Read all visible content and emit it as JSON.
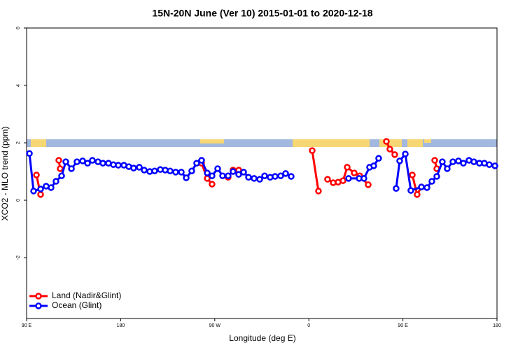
{
  "chart_data": {
    "type": "line",
    "title": "15N-20N June (Ver 10)   2015-01-01 to 2020-12-18",
    "x_label": "Longitude (deg E)",
    "y_label": "XCO2 - MLO trend (ppm)",
    "xlim": [
      90,
      540
    ],
    "xticks": [
      {
        "value": 90,
        "label": "90 E"
      },
      {
        "value": 180,
        "label": "180"
      },
      {
        "value": 270,
        "label": "90 W"
      },
      {
        "value": 360,
        "label": "0"
      },
      {
        "value": 450,
        "label": "90 E"
      },
      {
        "value": 540,
        "label": "180"
      }
    ],
    "ylim": [
      -4.12,
      6
    ],
    "yticks": [
      -2,
      0,
      2,
      4,
      6
    ],
    "legend": "bottomleft",
    "series": [
      {
        "name": "Land (Nadir&Glint)",
        "color": "#ff0000",
        "x": [
          99.4,
          103.4,
          null,
          120.8,
          122.1,
          null,
          257.4,
          262.8,
          267.4,
          null,
          282.8,
          287.5,
          292.9,
          null,
          363.2,
          369.2,
          null,
          377.9,
          383.3,
          388.0,
          392.7,
          396.7,
          403.4,
          408.7,
          416.8,
          null,
          434.2,
          437.5,
          442.2,
          null,
          459.0,
          463.6,
          467.7,
          null,
          480.4,
          482.4
        ],
        "values": [
          0.88,
          0.2,
          null,
          1.39,
          1.1,
          null,
          1.29,
          0.76,
          0.56,
          null,
          0.8,
          1.05,
          1.05,
          null,
          1.73,
          0.32,
          null,
          0.73,
          0.61,
          0.63,
          0.68,
          1.15,
          0.95,
          0.85,
          0.54,
          null,
          2.05,
          1.78,
          1.59,
          null,
          0.88,
          0.2,
          0.46,
          null,
          1.39,
          1.1
        ]
      },
      {
        "name": "Ocean (Glint)",
        "color": "#0000ff",
        "x": [
          92.7,
          96.7,
          103.4,
          108.7,
          113.4,
          118.1,
          123.5,
          127.5,
          132.9,
          138.2,
          143.6,
          148.3,
          152.9,
          158.3,
          163.0,
          168.3,
          173.0,
          177.7,
          183.1,
          187.8,
          192.4,
          197.8,
          202.5,
          207.8,
          212.5,
          217.9,
          222.6,
          227.3,
          232.6,
          238.0,
          242.7,
          248.0,
          252.7,
          257.4,
          262.8,
          267.4,
          272.8,
          277.5,
          282.8,
          287.5,
          292.9,
          297.6,
          302.3,
          307.6,
          313.0,
          317.7,
          323.0,
          327.7,
          333.1,
          337.8,
          343.1,
          null,
          398.0,
          408.1,
          412.7,
          418.1,
          422.1,
          426.8,
          null,
          443.5,
          446.9,
          452.3,
          457.6,
          467.7,
          473.0,
          477.7,
          482.4,
          487.7,
          492.4,
          497.8,
          503.1,
          507.8,
          513.2,
          517.9,
          523.2,
          527.9,
          532.6,
          538.0
        ],
        "values": [
          1.63,
          0.32,
          0.39,
          0.49,
          0.44,
          0.66,
          0.85,
          1.34,
          1.1,
          1.34,
          1.37,
          1.29,
          1.39,
          1.34,
          1.29,
          1.29,
          1.24,
          1.22,
          1.22,
          1.17,
          1.12,
          1.15,
          1.05,
          1.0,
          1.02,
          1.07,
          1.05,
          1.02,
          0.98,
          0.98,
          0.78,
          1.02,
          1.29,
          1.39,
          0.95,
          0.85,
          1.1,
          0.85,
          0.85,
          1.0,
          0.9,
          0.98,
          0.8,
          0.76,
          0.73,
          0.85,
          0.8,
          0.83,
          0.85,
          0.93,
          0.83,
          null,
          0.76,
          0.76,
          0.76,
          1.15,
          1.2,
          1.46,
          null,
          0.41,
          1.37,
          1.61,
          0.34,
          0.46,
          0.44,
          0.66,
          0.83,
          1.34,
          1.1,
          1.34,
          1.37,
          1.29,
          1.39,
          1.34,
          1.29,
          1.29,
          1.24,
          1.2
        ]
      }
    ]
  }
}
